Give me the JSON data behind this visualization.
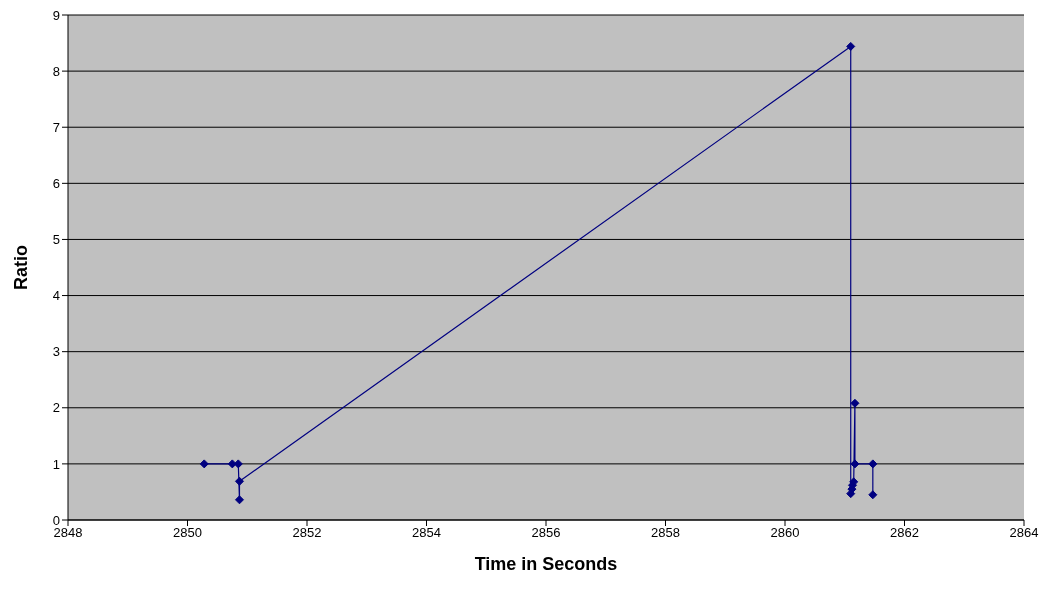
{
  "chart_data": {
    "type": "line",
    "xlabel": "Time in Seconds",
    "ylabel": "Ratio",
    "x": [
      2850.28,
      2850.75,
      2850.85,
      2850.87,
      2850.87,
      2861.1,
      2861.1,
      2861.12,
      2861.13,
      2861.15,
      2861.17,
      2861.17,
      2861.47,
      2861.47
    ],
    "series": [
      {
        "color": "#000080",
        "values": [
          1,
          1,
          1,
          0.36,
          0.69,
          8.44,
          0.47,
          0.55,
          0.62,
          0.68,
          2.08,
          1,
          1,
          0.45
        ]
      }
    ],
    "xlim": [
      2848,
      2864
    ],
    "xticks": [
      2848,
      2850,
      2852,
      2854,
      2856,
      2858,
      2860,
      2862,
      2864
    ],
    "ylim": [
      0,
      9
    ],
    "yticks": [
      0,
      1,
      2,
      3,
      4,
      5,
      6,
      7,
      8,
      9
    ],
    "grid": "y",
    "marker": "diamond",
    "line_style": "solid",
    "legend": false
  }
}
